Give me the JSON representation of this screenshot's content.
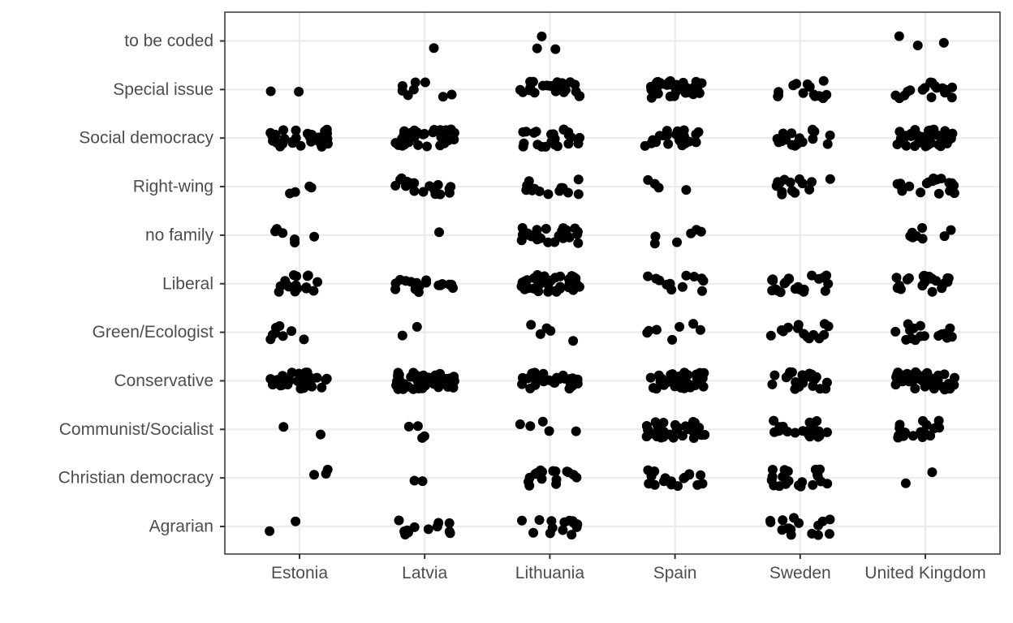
{
  "chart_data": {
    "type": "scatter",
    "title": "",
    "xlabel": "",
    "ylabel": "",
    "jitter": true,
    "grid": true,
    "legend": "none",
    "point_color": "#000000",
    "categories_x": [
      "Estonia",
      "Latvia",
      "Lithuania",
      "Spain",
      "Sweden",
      "United Kingdom"
    ],
    "categories_y": [
      "Agrarian",
      "Christian democracy",
      "Communist/Socialist",
      "Conservative",
      "Green/Ecologist",
      "Liberal",
      "no family",
      "Right-wing",
      "Social democracy",
      "Special issue",
      "to be coded"
    ],
    "counts": {
      "Estonia": {
        "to be coded": 0,
        "Special issue": 2,
        "Social democracy": 28,
        "Right-wing": 4,
        "no family": 6,
        "Liberal": 18,
        "Green/Ecologist": 8,
        "Conservative": 30,
        "Communist/Socialist": 2,
        "Christian democracy": 3,
        "Agrarian": 2
      },
      "Latvia": {
        "to be coded": 1,
        "Special issue": 8,
        "Social democracy": 40,
        "Right-wing": 18,
        "no family": 1,
        "Liberal": 18,
        "Green/Ecologist": 2,
        "Conservative": 40,
        "Communist/Socialist": 4,
        "Christian democracy": 2,
        "Agrarian": 12
      },
      "Lithuania": {
        "to be coded": 3,
        "Special issue": 22,
        "Social democracy": 24,
        "Right-wing": 14,
        "no family": 24,
        "Liberal": 40,
        "Green/Ecologist": 5,
        "Conservative": 28,
        "Communist/Socialist": 5,
        "Christian democracy": 18,
        "Agrarian": 14
      },
      "Spain": {
        "to be coded": 0,
        "Special issue": 40,
        "Social democracy": 22,
        "Right-wing": 4,
        "no family": 6,
        "Liberal": 12,
        "Green/Ecologist": 7,
        "Conservative": 40,
        "Communist/Socialist": 32,
        "Christian democracy": 18,
        "Agrarian": 0
      },
      "Sweden": {
        "to be coded": 0,
        "Special issue": 14,
        "Social democracy": 18,
        "Right-wing": 14,
        "no family": 0,
        "Liberal": 22,
        "Green/Ecologist": 14,
        "Conservative": 22,
        "Communist/Socialist": 22,
        "Christian democracy": 20,
        "Agrarian": 16
      },
      "United Kingdom": {
        "to be coded": 3,
        "Special issue": 18,
        "Social democracy": 40,
        "Right-wing": 18,
        "no family": 8,
        "Liberal": 20,
        "Green/Ecologist": 16,
        "Conservative": 44,
        "Communist/Socialist": 18,
        "Christian democracy": 2,
        "Agrarian": 0
      }
    }
  }
}
